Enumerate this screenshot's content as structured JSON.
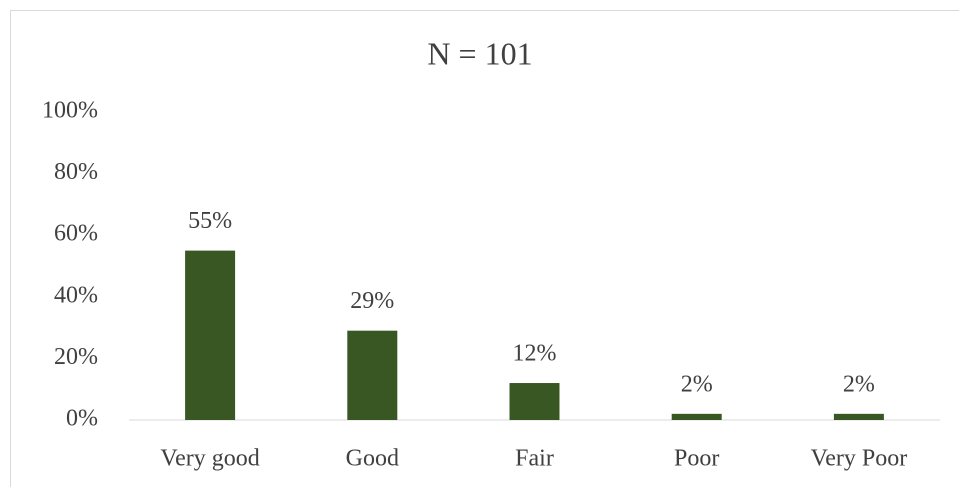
{
  "chart_data": {
    "type": "bar",
    "title": "N = 101",
    "categories": [
      "Very good",
      "Good",
      "Fair",
      "Poor",
      "Very Poor"
    ],
    "values": [
      55,
      29,
      12,
      2,
      2
    ],
    "value_labels": [
      "55%",
      "29%",
      "12%",
      "2%",
      "2%"
    ],
    "color": "#385723",
    "ylim": [
      0,
      100
    ],
    "yticks": [
      {
        "value": 0,
        "label": "0%"
      },
      {
        "value": 20,
        "label": "20%"
      },
      {
        "value": 40,
        "label": "40%"
      },
      {
        "value": 60,
        "label": "60%"
      },
      {
        "value": 80,
        "label": "80%"
      },
      {
        "value": 100,
        "label": "100%"
      }
    ],
    "grid": false
  }
}
